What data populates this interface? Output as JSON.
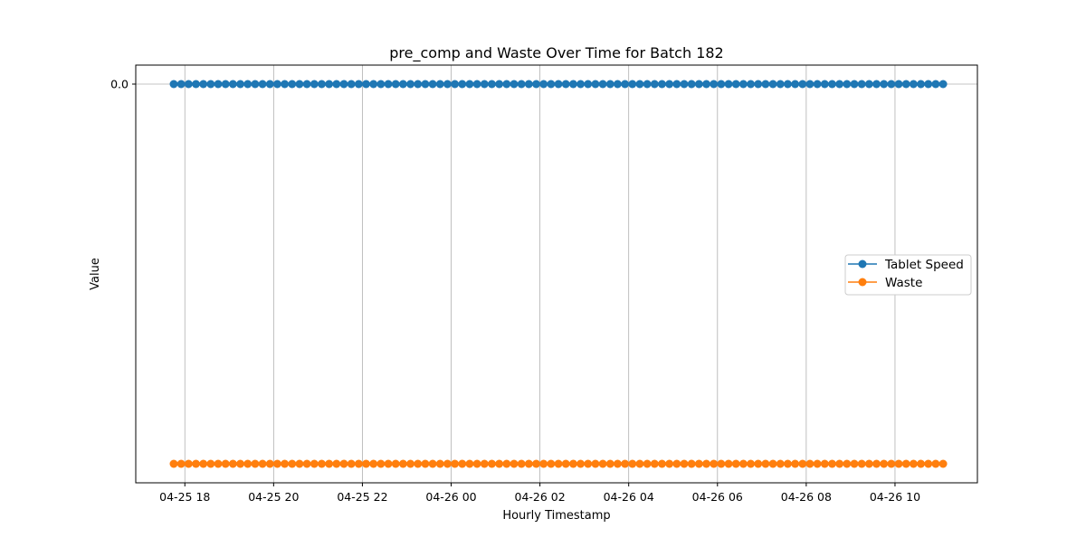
{
  "chart_data": {
    "type": "line",
    "title": "pre_comp and Waste Over Time for Batch 182",
    "xlabel": "Hourly Timestamp",
    "ylabel": "Value",
    "x_axis": {
      "kind": "time",
      "start": "2025-04-25 17:45",
      "end": "2025-04-26 11:00",
      "step_minutes": 10,
      "ticks": [
        "04-25 18",
        "04-25 20",
        "04-25 22",
        "04-26 00",
        "04-26 02",
        "04-26 04",
        "04-26 06",
        "04-26 08",
        "04-26 10"
      ]
    },
    "y_axis": {
      "ticks": [
        "0.0"
      ]
    },
    "grid": "vertical",
    "legend": {
      "position": "center-right"
    },
    "series": [
      {
        "name": "Tablet Speed",
        "color": "#1f77b4",
        "marker": "circle",
        "value": 0.0,
        "position": "top"
      },
      {
        "name": "Waste",
        "color": "#ff7f0e",
        "marker": "circle",
        "value": null,
        "position": "bottom"
      }
    ]
  }
}
